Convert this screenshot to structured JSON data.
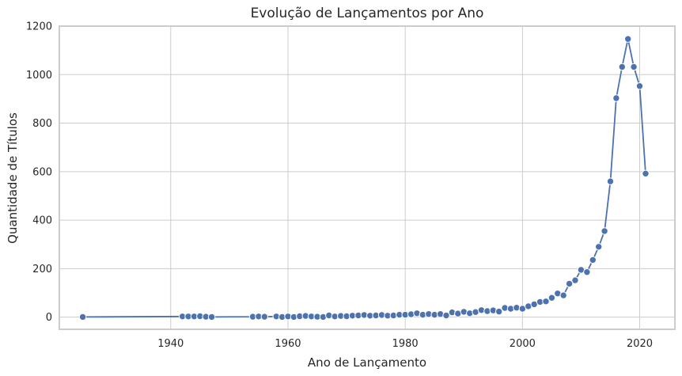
{
  "chart_data": {
    "type": "line",
    "title": "Evolução de Lançamentos por Ano",
    "xlabel": "Ano de Lançamento",
    "ylabel": "Quantidade de Títulos",
    "xlim": [
      1921,
      2026
    ],
    "ylim": [
      -50,
      1200
    ],
    "xticks": [
      1940,
      1960,
      1980,
      2000,
      2020
    ],
    "yticks": [
      0,
      200,
      400,
      600,
      800,
      1000,
      1200
    ],
    "grid": true,
    "series_color": "#4c72b0",
    "marker": "circle",
    "series": [
      {
        "points": [
          [
            1925,
            1
          ],
          [
            1942,
            3
          ],
          [
            1943,
            3
          ],
          [
            1944,
            3
          ],
          [
            1945,
            4
          ],
          [
            1946,
            2
          ],
          [
            1947,
            1
          ],
          [
            1954,
            2
          ],
          [
            1955,
            3
          ],
          [
            1956,
            2
          ],
          [
            1958,
            3
          ],
          [
            1959,
            1
          ],
          [
            1960,
            3
          ],
          [
            1961,
            1
          ],
          [
            1962,
            4
          ],
          [
            1963,
            5
          ],
          [
            1964,
            3
          ],
          [
            1965,
            2
          ],
          [
            1966,
            1
          ],
          [
            1967,
            7
          ],
          [
            1968,
            3
          ],
          [
            1969,
            5
          ],
          [
            1970,
            4
          ],
          [
            1971,
            6
          ],
          [
            1972,
            7
          ],
          [
            1973,
            9
          ],
          [
            1974,
            6
          ],
          [
            1975,
            7
          ],
          [
            1976,
            9
          ],
          [
            1977,
            6
          ],
          [
            1978,
            7
          ],
          [
            1979,
            10
          ],
          [
            1980,
            10
          ],
          [
            1981,
            12
          ],
          [
            1982,
            16
          ],
          [
            1983,
            10
          ],
          [
            1984,
            13
          ],
          [
            1985,
            10
          ],
          [
            1986,
            13
          ],
          [
            1987,
            7
          ],
          [
            1988,
            20
          ],
          [
            1989,
            15
          ],
          [
            1990,
            22
          ],
          [
            1991,
            16
          ],
          [
            1992,
            21
          ],
          [
            1993,
            29
          ],
          [
            1994,
            25
          ],
          [
            1995,
            28
          ],
          [
            1996,
            23
          ],
          [
            1997,
            38
          ],
          [
            1998,
            35
          ],
          [
            1999,
            39
          ],
          [
            2000,
            35
          ],
          [
            2001,
            45
          ],
          [
            2002,
            53
          ],
          [
            2003,
            63
          ],
          [
            2004,
            65
          ],
          [
            2005,
            80
          ],
          [
            2006,
            98
          ],
          [
            2007,
            90
          ],
          [
            2008,
            138
          ],
          [
            2009,
            152
          ],
          [
            2010,
            195
          ],
          [
            2011,
            186
          ],
          [
            2012,
            236
          ],
          [
            2013,
            290
          ],
          [
            2014,
            355
          ],
          [
            2015,
            560
          ],
          [
            2016,
            903
          ],
          [
            2017,
            1032
          ],
          [
            2018,
            1147
          ],
          [
            2019,
            1032
          ],
          [
            2020,
            953
          ],
          [
            2021,
            592
          ]
        ]
      }
    ]
  }
}
